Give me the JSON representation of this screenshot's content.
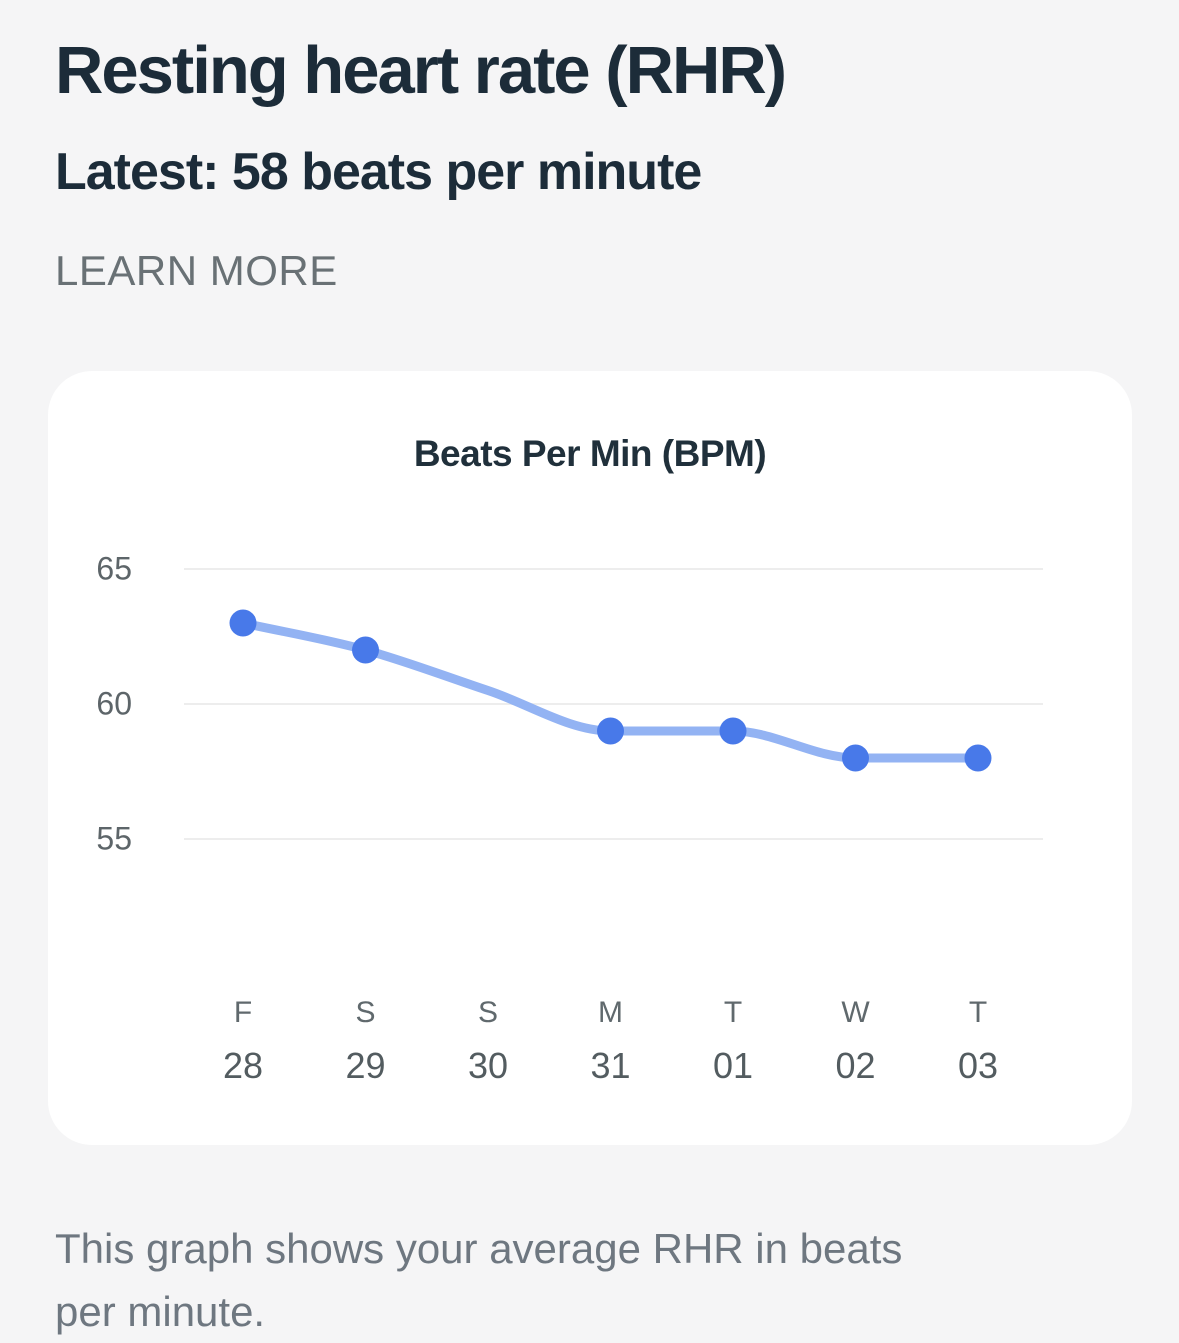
{
  "header": {
    "title": "Resting heart rate (RHR)",
    "subtitle": "Latest: 58 beats per minute",
    "learn_more_label": "LEARN MORE"
  },
  "caption": "This graph shows your average RHR in beats per minute.",
  "chart_data": {
    "type": "line",
    "title": "Beats Per Min (BPM)",
    "categories": [
      {
        "day": "F",
        "date": "28"
      },
      {
        "day": "S",
        "date": "29"
      },
      {
        "day": "S",
        "date": "30"
      },
      {
        "day": "M",
        "date": "31"
      },
      {
        "day": "T",
        "date": "01"
      },
      {
        "day": "W",
        "date": "02"
      },
      {
        "day": "T",
        "date": "03"
      }
    ],
    "values": [
      63,
      62,
      null,
      59,
      59,
      58,
      58
    ],
    "unit": "bpm",
    "ylabel": "Beats Per Min (BPM)",
    "yticks": [
      65,
      60,
      55
    ],
    "ylim": [
      54,
      67
    ],
    "grid": "horizontal gridlines only",
    "legend": "none",
    "line_style": "smooth curve; round markers on measured points only (no marker on S 30)",
    "colors": {
      "line": "#93b3f3",
      "point": "#4879e9",
      "grid": "#ededed",
      "axis_label": "#5d6569",
      "title_text": "#1c2c39",
      "card_background": "#ffffff",
      "page_background": "#f5f5f6"
    }
  }
}
